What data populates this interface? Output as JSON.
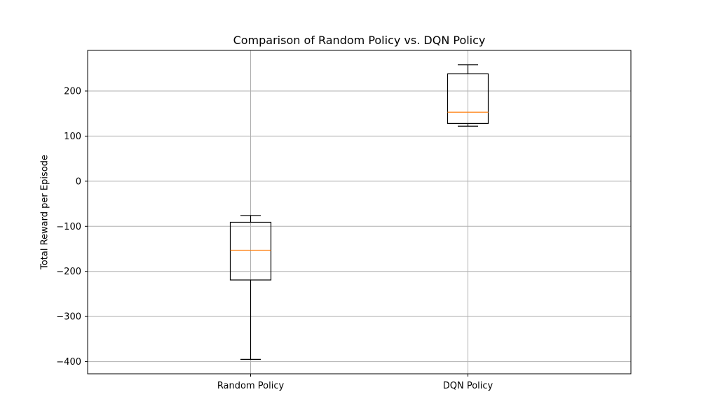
{
  "chart_data": {
    "type": "box",
    "title": "Comparison of Random Policy vs. DQN Policy",
    "xlabel": "",
    "ylabel": "Total Reward per Episode",
    "categories": [
      "Random Policy",
      "DQN Policy"
    ],
    "boxes": [
      {
        "label": "Random Policy",
        "whisker_low": -395,
        "q1": -219,
        "median": -153,
        "q3": -91,
        "whisker_high": -76
      },
      {
        "label": "DQN Policy",
        "whisker_low": 122,
        "q1": 128,
        "median": 153,
        "q3": 238,
        "whisker_high": 258
      }
    ],
    "yticks": [
      200,
      100,
      0,
      -100,
      -200,
      -300,
      -400
    ],
    "ytick_labels": [
      "200",
      "100",
      "0",
      "−100",
      "−200",
      "−300",
      "−400"
    ],
    "ylim": [
      -427,
      290
    ],
    "grid": true,
    "legend": "none",
    "colors": {
      "box_edge": "#000000",
      "median": "#ff7f0e",
      "grid": "#b0b0b0"
    }
  }
}
